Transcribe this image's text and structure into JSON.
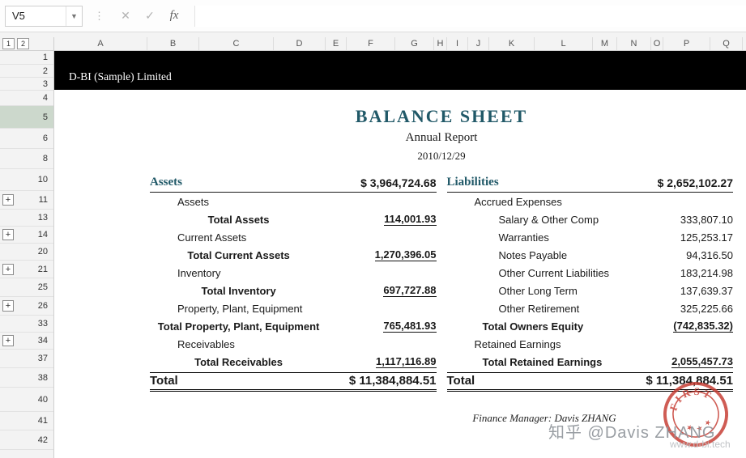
{
  "formula_bar": {
    "name_box": "V5",
    "separator": "⋮",
    "cancel": "✕",
    "enter": "✓",
    "fx": "fx"
  },
  "grid": {
    "outline_levels": [
      "1",
      "2"
    ],
    "columns": [
      "A",
      "B",
      "C",
      "D",
      "E",
      "F",
      "G",
      "H",
      "I",
      "J",
      "K",
      "L",
      "M",
      "N",
      "O",
      "P",
      "Q"
    ],
    "rows": [
      "1",
      "2",
      "3",
      "4",
      "5",
      "6",
      "8",
      "10",
      "11",
      "13",
      "14",
      "20",
      "21",
      "25",
      "26",
      "33",
      "34",
      "37",
      "38",
      "40",
      "41",
      "42"
    ],
    "active_row": "5",
    "collapse_rows": [
      "11",
      "14",
      "21",
      "26",
      "34"
    ],
    "plus_label": "+"
  },
  "report": {
    "company": "D-BI (Sample) Limited",
    "title": "BALANCE SHEET",
    "subtitle": "Annual Report",
    "date": "2010/12/29",
    "assets": {
      "title": "Assets",
      "total_header": "$ 3,964,724.68",
      "rows": [
        {
          "label": "Assets",
          "value": "",
          "type": "group"
        },
        {
          "label": "Total Assets",
          "value": "114,001.93",
          "type": "subtotal"
        },
        {
          "label": "Current Assets",
          "value": "",
          "type": "group"
        },
        {
          "label": "Total Current Assets",
          "value": "1,270,396.05",
          "type": "subtotal"
        },
        {
          "label": "Inventory",
          "value": "",
          "type": "group"
        },
        {
          "label": "Total Inventory",
          "value": "697,727.88",
          "type": "subtotal"
        },
        {
          "label": "Property, Plant, Equipment",
          "value": "",
          "type": "group"
        },
        {
          "label": "Total Property, Plant, Equipment",
          "value": "765,481.93",
          "type": "subtotal"
        },
        {
          "label": "Receivables",
          "value": "",
          "type": "group"
        },
        {
          "label": "Total Receivables",
          "value": "1,117,116.89",
          "type": "subtotal"
        }
      ],
      "grand_total_label": "Total",
      "grand_total_value": "$ 11,384,884.51"
    },
    "liabilities": {
      "title": "Liabilities",
      "total_header": "$ 2,652,102.27",
      "rows": [
        {
          "label": "Accrued Expenses",
          "value": "",
          "type": "group"
        },
        {
          "label": "Salary & Other Comp",
          "value": "333,807.10",
          "type": "item"
        },
        {
          "label": "Warranties",
          "value": "125,253.17",
          "type": "item"
        },
        {
          "label": "Notes Payable",
          "value": "94,316.50",
          "type": "item"
        },
        {
          "label": "Other Current Liabilities",
          "value": "183,214.98",
          "type": "item"
        },
        {
          "label": "Other Long Term",
          "value": "137,639.37",
          "type": "item"
        },
        {
          "label": "Other Retirement",
          "value": "325,225.66",
          "type": "item"
        },
        {
          "label": "Total Owners Equity",
          "value": "(742,835.32)",
          "type": "subtotal"
        },
        {
          "label": "Retained Earnings",
          "value": "",
          "type": "group"
        },
        {
          "label": "Total Retained Earnings",
          "value": "2,055,457.73",
          "type": "subtotal"
        }
      ],
      "grand_total_label": "Total",
      "grand_total_value": "$ 11,384,884.51"
    },
    "footer": {
      "signature": "Finance Manager: Davis ZHANG",
      "stamp": "FIRST",
      "stamp_stars": "★ ★ ★",
      "watermark": "知乎 @Davis ZHANG",
      "website": "www.d-bi.tech"
    }
  }
}
